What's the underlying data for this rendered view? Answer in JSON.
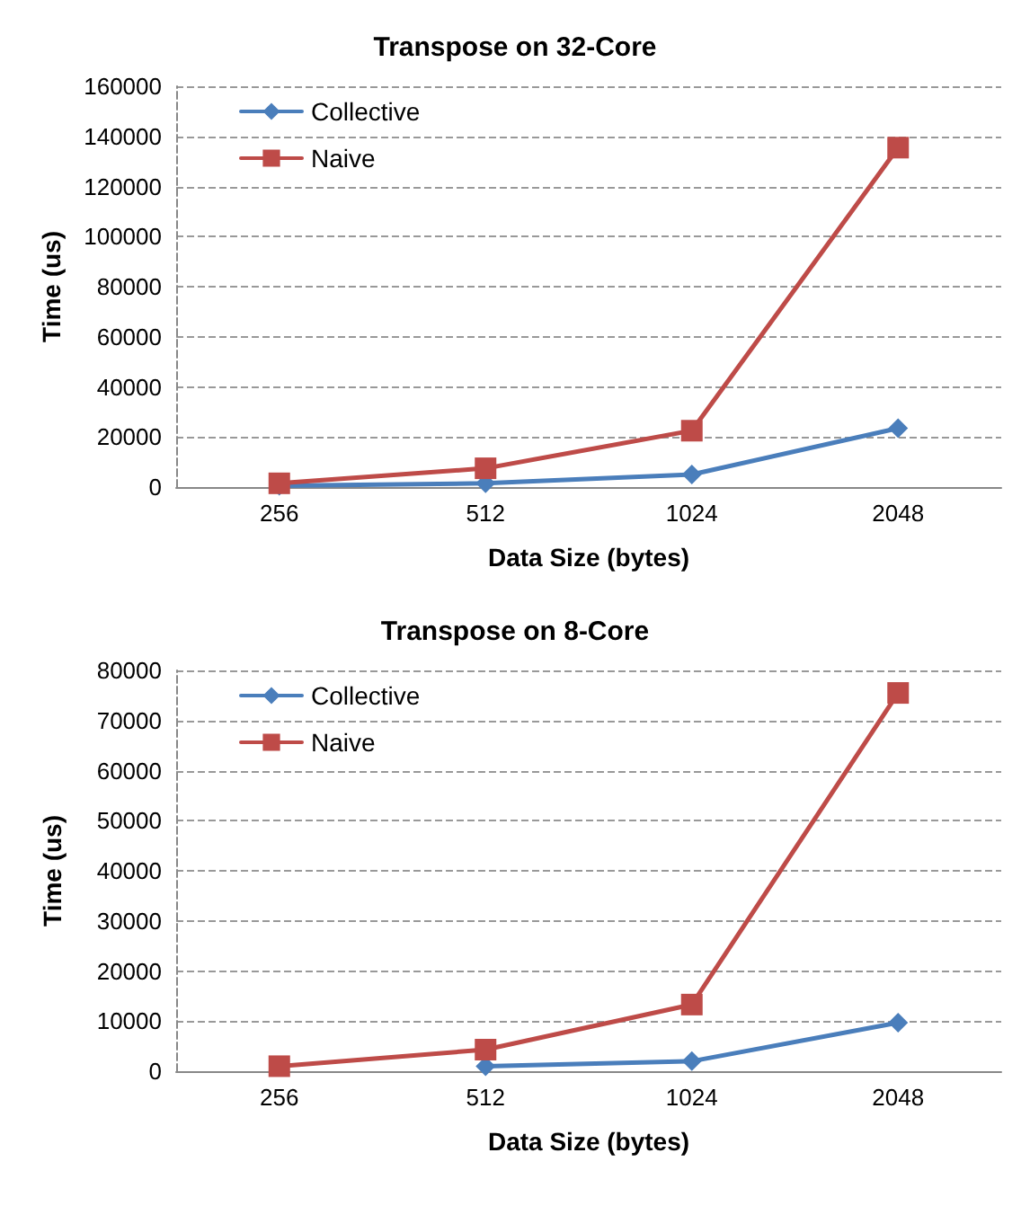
{
  "chart_data": [
    {
      "type": "line",
      "title": "Transpose on 32-Core",
      "xlabel": "Data Size (bytes)",
      "ylabel": "Time (us)",
      "categories": [
        "256",
        "512",
        "1024",
        "2048"
      ],
      "series": [
        {
          "name": "Collective",
          "color": "#4a7ebb",
          "marker": "diamond",
          "values": [
            500,
            1500,
            5000,
            23500
          ]
        },
        {
          "name": "Naive",
          "color": "#be4b48",
          "marker": "square",
          "values": [
            1500,
            7500,
            22500,
            135500
          ]
        }
      ],
      "ylim": [
        0,
        160000
      ],
      "yticks": [
        0,
        20000,
        40000,
        60000,
        80000,
        100000,
        120000,
        140000,
        160000
      ],
      "grid": "y",
      "legend": "top left"
    },
    {
      "type": "line",
      "title": "Transpose on 8-Core",
      "xlabel": "Data Size (bytes)",
      "ylabel": "Time (us)",
      "categories": [
        "256",
        "512",
        "1024",
        "2048"
      ],
      "series": [
        {
          "name": "Collective",
          "color": "#4a7ebb",
          "marker": "diamond",
          "values": [
            null,
            1000,
            2000,
            9700
          ]
        },
        {
          "name": "Naive",
          "color": "#be4b48",
          "marker": "square",
          "values": [
            1000,
            4300,
            13300,
            75500
          ]
        }
      ],
      "ylim": [
        0,
        80000
      ],
      "yticks": [
        0,
        10000,
        20000,
        30000,
        40000,
        50000,
        60000,
        70000,
        80000
      ],
      "grid": "y",
      "legend": "top left"
    }
  ]
}
